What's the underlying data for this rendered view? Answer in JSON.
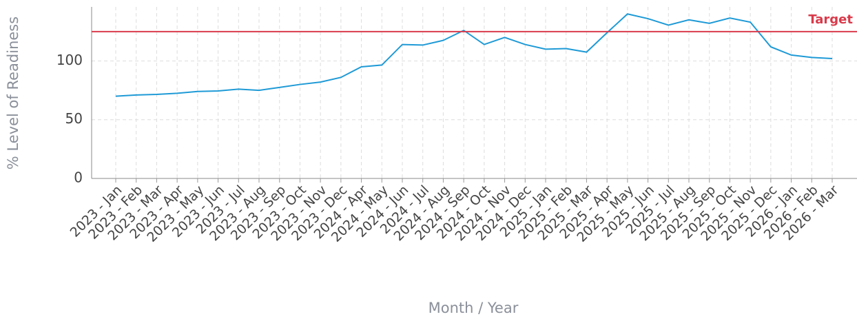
{
  "chart_data": {
    "type": "line",
    "ylabel": "% Level of Readiness",
    "xlabel": "Month / Year",
    "categories": [
      "2023 - Jan",
      "2023 - Feb",
      "2023 - Mar",
      "2023 - Apr",
      "2023 - May",
      "2023 - Jun",
      "2023 - Jul",
      "2023 - Aug",
      "2023 - Sep",
      "2023 - Oct",
      "2023 - Nov",
      "2023 - Dec",
      "2024 - Apr",
      "2024 - May",
      "2024 - Jun",
      "2024 - Jul",
      "2024 - Aug",
      "2024 - Sep",
      "2024 - Oct",
      "2024 - Nov",
      "2024 - Dec",
      "2025 - Jan",
      "2025 - Feb",
      "2025 - Mar",
      "2025 - Apr",
      "2025 - May",
      "2025 - Jun",
      "2025 - Jul",
      "2025 - Aug",
      "2025 - Sep",
      "2025 - Oct",
      "2025 - Nov",
      "2025 - Dec",
      "2026 - Jan",
      "2026 - Feb",
      "2026 - Mar"
    ],
    "series": [
      {
        "color": "#1e9ad6",
        "values": [
          70,
          71,
          71.5,
          72.5,
          74,
          74.5,
          76,
          75,
          77.5,
          80,
          82,
          86,
          95,
          96.5,
          114,
          113.5,
          117.5,
          126,
          114,
          120,
          114,
          110,
          110.5,
          107.5,
          124,
          140,
          136,
          130.5,
          135,
          132,
          136.5,
          133,
          112,
          105,
          103,
          102
        ]
      }
    ],
    "target": {
      "value": 125,
      "label": "Target",
      "color": "#d93a4a"
    },
    "ylim": [
      0,
      146
    ],
    "yticks": [
      0,
      50,
      100
    ],
    "grid": true
  }
}
